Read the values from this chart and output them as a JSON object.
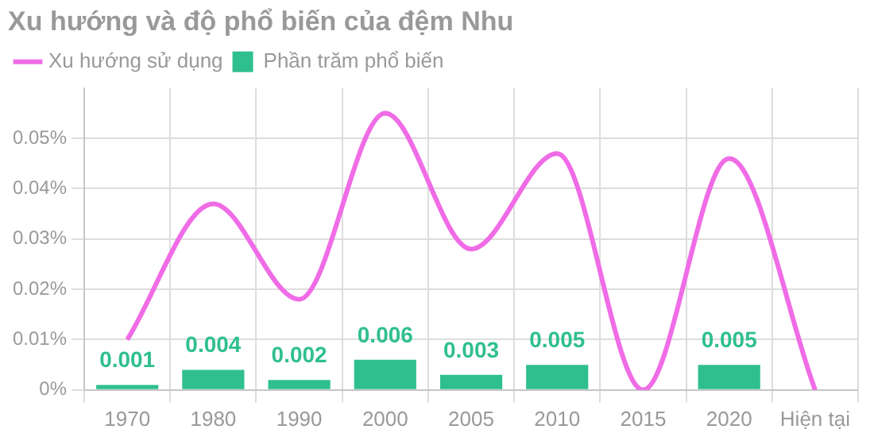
{
  "chart_data": {
    "type": "bar",
    "title": "Xu hướng và độ phổ biến của đệm Nhu",
    "categories": [
      "1970",
      "1980",
      "1990",
      "2000",
      "2005",
      "2010",
      "2015",
      "2020",
      "Hiện tại"
    ],
    "series": [
      {
        "name": "Xu hướng sử dụng",
        "type": "line",
        "color": "#f06ce6",
        "values": [
          0.01,
          0.037,
          0.018,
          0.055,
          0.028,
          0.047,
          0,
          0.046,
          0
        ]
      },
      {
        "name": "Phần trăm phổ biến",
        "color": "#2fbf8f",
        "values": [
          0.001,
          0.004,
          0.002,
          0.006,
          0.003,
          0.005,
          null,
          0.005,
          null
        ],
        "value_labels": [
          "0.001",
          "0.004",
          "0.002",
          "0.006",
          "0.003",
          "0.005",
          null,
          "0.005",
          null
        ]
      }
    ],
    "ylim": [
      0,
      0.06
    ],
    "yticks": [
      {
        "value": 0,
        "label": "0%"
      },
      {
        "value": 0.01,
        "label": "0.01%"
      },
      {
        "value": 0.02,
        "label": "0.02%"
      },
      {
        "value": 0.03,
        "label": "0.03%"
      },
      {
        "value": 0.04,
        "label": "0.04%"
      },
      {
        "value": 0.05,
        "label": "0.05%"
      }
    ],
    "grid": true,
    "legend": "top left",
    "marker": "none"
  }
}
